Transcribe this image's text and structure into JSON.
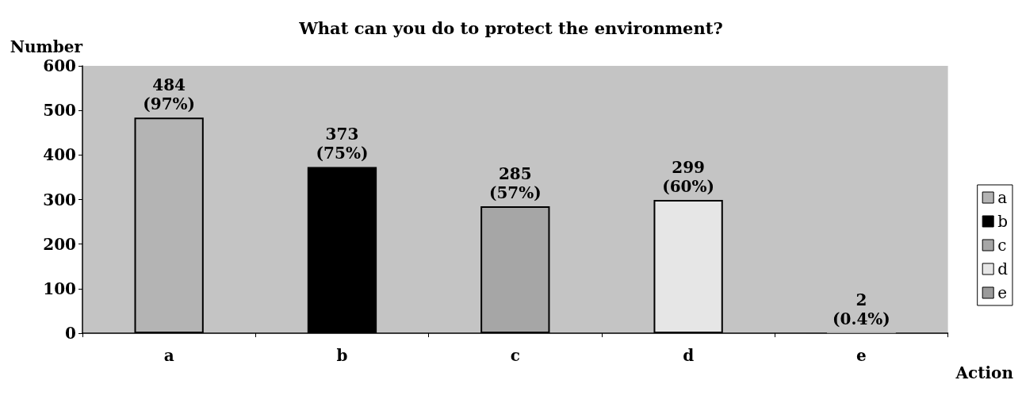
{
  "chart_data": {
    "type": "bar",
    "title": "What can you do to protect the environment?",
    "ylabel": "Number",
    "xlabel": "Action",
    "categories": [
      "a",
      "b",
      "c",
      "d",
      "e"
    ],
    "stacked": true,
    "ylim": [
      0,
      600
    ],
    "yticks": [
      0,
      100,
      200,
      300,
      400,
      500,
      600
    ],
    "grid": false,
    "legend": "right",
    "series": [
      {
        "name": "a",
        "color": "#b4b4b4",
        "values": [
          484,
          null,
          null,
          null,
          null
        ],
        "value_labels": [
          "484\n(97%)",
          null,
          null,
          null,
          null
        ]
      },
      {
        "name": "b",
        "color": "#000000",
        "values": [
          null,
          373,
          null,
          null,
          null
        ],
        "value_labels": [
          null,
          "373\n(75%)",
          null,
          null,
          null
        ]
      },
      {
        "name": "c",
        "color": "#a6a6a6",
        "values": [
          null,
          null,
          285,
          null,
          null
        ],
        "value_labels": [
          null,
          null,
          "285\n(57%)",
          null,
          null
        ]
      },
      {
        "name": "d",
        "color": "#e6e6e6",
        "values": [
          null,
          null,
          null,
          299,
          null
        ],
        "value_labels": [
          null,
          null,
          null,
          "299\n(60%)",
          null
        ]
      },
      {
        "name": "e",
        "color": "#9a9a9a",
        "values": [
          null,
          null,
          null,
          null,
          2
        ],
        "value_labels": [
          null,
          null,
          null,
          null,
          "2\n(0.4%)"
        ]
      }
    ]
  }
}
